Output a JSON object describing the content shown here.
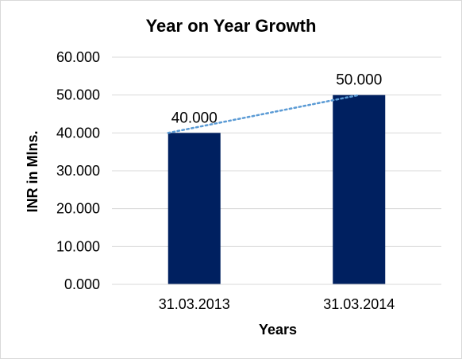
{
  "chart_data": {
    "type": "bar",
    "title": "Year on Year Growth",
    "xlabel": "Years",
    "ylabel": "INR in Mlns.",
    "categories": [
      "31.03.2013",
      "31.03.2014"
    ],
    "values": [
      40,
      50
    ],
    "value_labels": [
      "40.000",
      "50.000"
    ],
    "ylim": [
      0,
      60
    ],
    "y_ticks": [
      0,
      10,
      20,
      30,
      40,
      50,
      60
    ],
    "y_tick_labels": [
      "0.000",
      "10.000",
      "20.000",
      "30.000",
      "40.000",
      "50.000",
      "60.000"
    ],
    "grid": true,
    "legend": "none",
    "trendline": "linear, dotted",
    "bar_color": "#002060",
    "trendline_color": "#5b9bd5",
    "grid_color": "#d9d9d9"
  }
}
